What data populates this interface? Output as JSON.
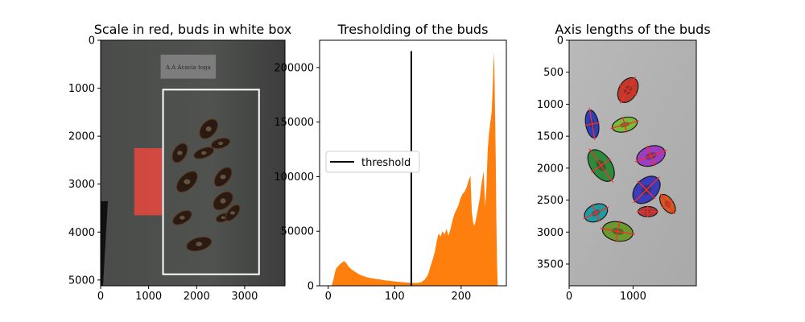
{
  "chart_data": [
    {
      "type": "image",
      "title": "Scale in red, buds in white box",
      "x_ticks": [
        0,
        1000,
        2000,
        3000
      ],
      "y_ticks": [
        0,
        1000,
        2000,
        3000,
        4000,
        5000
      ],
      "xlim": [
        0,
        3840
      ],
      "ylim": [
        5120,
        0
      ],
      "label_card_text": "A.A Acacia toga",
      "overlays": [
        {
          "name": "scale",
          "color": "#e0483f",
          "x": [
            700,
            1280
          ],
          "y": [
            2250,
            3650
          ]
        },
        {
          "name": "buds box",
          "color": "#ffffff",
          "x": [
            1300,
            3300
          ],
          "y": [
            1030,
            4880
          ]
        }
      ]
    },
    {
      "type": "histogram",
      "title": "Tresholding of the buds",
      "x_ticks": [
        0,
        100,
        200
      ],
      "y_ticks": [
        0,
        50000,
        100000,
        150000,
        200000
      ],
      "xlim": [
        -13,
        268
      ],
      "ylim": [
        0,
        225000
      ],
      "color": "#ff7f0e",
      "threshold": {
        "label": "threshold",
        "value": 125,
        "ymax": 215000
      },
      "legend_position": "center-left",
      "bins": [
        [
          5,
          0
        ],
        [
          8,
          6000
        ],
        [
          10,
          12000
        ],
        [
          12,
          16000
        ],
        [
          15,
          18000
        ],
        [
          18,
          20000
        ],
        [
          21,
          21500
        ],
        [
          24,
          22500
        ],
        [
          27,
          21000
        ],
        [
          30,
          18000
        ],
        [
          35,
          15000
        ],
        [
          40,
          13000
        ],
        [
          45,
          11000
        ],
        [
          50,
          9500
        ],
        [
          55,
          8500
        ],
        [
          60,
          7500
        ],
        [
          65,
          7000
        ],
        [
          70,
          6500
        ],
        [
          75,
          6000
        ],
        [
          80,
          5500
        ],
        [
          85,
          5000
        ],
        [
          90,
          4700
        ],
        [
          95,
          4300
        ],
        [
          100,
          4000
        ],
        [
          105,
          3700
        ],
        [
          110,
          3400
        ],
        [
          115,
          3100
        ],
        [
          120,
          2900
        ],
        [
          125,
          2700
        ],
        [
          130,
          2600
        ],
        [
          135,
          2800
        ],
        [
          140,
          3200
        ],
        [
          145,
          5500
        ],
        [
          150,
          10000
        ],
        [
          155,
          20000
        ],
        [
          160,
          30000
        ],
        [
          163,
          40000
        ],
        [
          166,
          48000
        ],
        [
          169,
          45000
        ],
        [
          172,
          50000
        ],
        [
          175,
          47000
        ],
        [
          178,
          52000
        ],
        [
          181,
          46000
        ],
        [
          184,
          52000
        ],
        [
          187,
          60000
        ],
        [
          190,
          66000
        ],
        [
          193,
          70000
        ],
        [
          196,
          74000
        ],
        [
          199,
          80000
        ],
        [
          202,
          84000
        ],
        [
          205,
          86000
        ],
        [
          208,
          90000
        ],
        [
          211,
          96000
        ],
        [
          214,
          101000
        ],
        [
          216,
          68000
        ],
        [
          218,
          58000
        ],
        [
          220,
          55000
        ],
        [
          222,
          60000
        ],
        [
          225,
          70000
        ],
        [
          228,
          80000
        ],
        [
          231,
          95000
        ],
        [
          234,
          105000
        ],
        [
          236,
          72000
        ],
        [
          238,
          90000
        ],
        [
          240,
          125000
        ],
        [
          242,
          140000
        ],
        [
          244,
          150000
        ],
        [
          246,
          160000
        ],
        [
          247,
          175000
        ],
        [
          248,
          190000
        ],
        [
          249,
          214000
        ],
        [
          250,
          200000
        ],
        [
          251,
          160000
        ],
        [
          252,
          120000
        ],
        [
          253,
          60000
        ],
        [
          254,
          20000
        ],
        [
          255,
          0
        ]
      ]
    },
    {
      "type": "image",
      "title": "Axis lengths of the buds",
      "x_ticks": [
        0,
        1000
      ],
      "y_ticks": [
        0,
        500,
        1000,
        1500,
        2000,
        2500,
        3000,
        3500
      ],
      "xlim": [
        0,
        1990
      ],
      "ylim": [
        3840,
        0
      ],
      "buds": [
        {
          "cx": 920,
          "cy": 780,
          "rx": 140,
          "ry": 210,
          "rot": 30,
          "color": "#c0392b"
        },
        {
          "cx": 360,
          "cy": 1310,
          "rx": 100,
          "ry": 220,
          "rot": -10,
          "color": "#2a3fb8"
        },
        {
          "cx": 870,
          "cy": 1320,
          "rx": 200,
          "ry": 110,
          "rot": -15,
          "color": "#7ab93a"
        },
        {
          "cx": 1280,
          "cy": 1810,
          "rx": 230,
          "ry": 150,
          "rot": -20,
          "color": "#9b3fc0"
        },
        {
          "cx": 500,
          "cy": 1960,
          "rx": 160,
          "ry": 280,
          "rot": -35,
          "color": "#2e8b3e"
        },
        {
          "cx": 1210,
          "cy": 2340,
          "rx": 170,
          "ry": 250,
          "rot": 45,
          "color": "#3a3cb8"
        },
        {
          "cx": 1540,
          "cy": 2560,
          "rx": 90,
          "ry": 170,
          "rot": -35,
          "color": "#d05a20"
        },
        {
          "cx": 1230,
          "cy": 2680,
          "rx": 150,
          "ry": 80,
          "rot": 0,
          "color": "#b03a3a"
        },
        {
          "cx": 420,
          "cy": 2700,
          "rx": 190,
          "ry": 130,
          "rot": -25,
          "color": "#1f9aa0"
        },
        {
          "cx": 760,
          "cy": 2990,
          "rx": 240,
          "ry": 150,
          "rot": 10,
          "color": "#6a9a2f"
        }
      ]
    }
  ]
}
